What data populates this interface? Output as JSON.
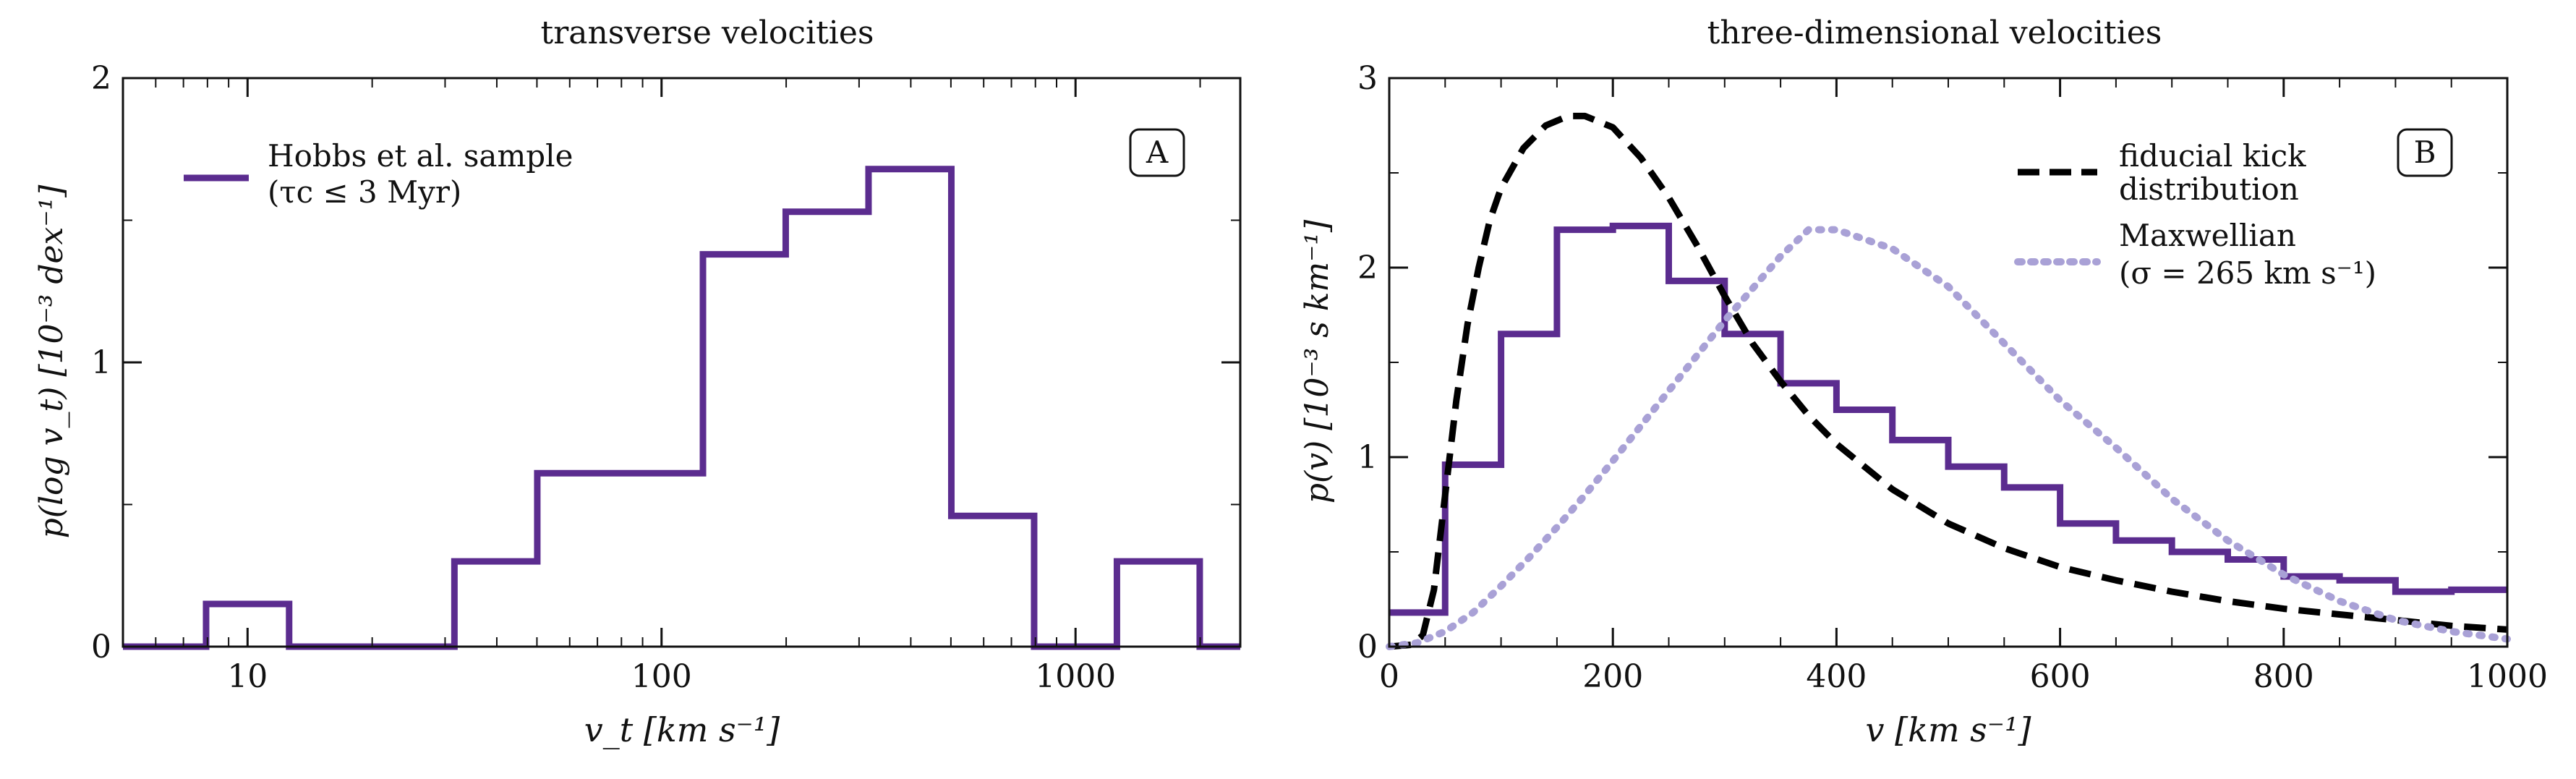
{
  "chart_data": [
    {
      "panel": "A",
      "type": "histogram",
      "title": "transverse velocities",
      "xlabel": "v_t  [km s⁻¹]",
      "ylabel": "p(log v_t)  [10⁻³ dex⁻¹]",
      "xscale": "log",
      "xlim": [
        5,
        2500
      ],
      "ylim": [
        0,
        2
      ],
      "xticks": [
        10,
        100,
        1000
      ],
      "xtick_labels": [
        "10",
        "100",
        "1000"
      ],
      "yticks": [
        0,
        1,
        2
      ],
      "ytick_labels": [
        "0",
        "1",
        "2"
      ],
      "panel_label": "A",
      "legend": {
        "position": "top-left",
        "line1": "Hobbs et al. sample",
        "line2": "(τc ≤ 3 Myr)"
      },
      "series": [
        {
          "name": "Hobbs et al. sample (τc ≤ 3 Myr)",
          "color": "#5b2c8f",
          "edges": [
            5,
            7.94,
            12.6,
            19.95,
            31.6,
            50.1,
            79.4,
            125.9,
            199.5,
            316.2,
            501.2,
            794.3,
            1258.9,
            1995.3,
            2500
          ],
          "values": [
            0,
            0.15,
            0,
            0,
            0.3,
            0.61,
            0.61,
            1.38,
            1.53,
            1.68,
            0.46,
            0,
            0.3,
            0
          ]
        }
      ]
    },
    {
      "panel": "B",
      "type": "line",
      "title": "three-dimensional velocities",
      "xlabel": "v  [km s⁻¹]",
      "ylabel": "p(v)  [10⁻³ s km⁻¹]",
      "xlim": [
        0,
        1000
      ],
      "ylim": [
        0,
        3
      ],
      "xticks": [
        0,
        200,
        400,
        600,
        800,
        1000
      ],
      "xtick_labels": [
        "0",
        "200",
        "400",
        "600",
        "800",
        "1000"
      ],
      "yticks": [
        0,
        1,
        2,
        3
      ],
      "ytick_labels": [
        "0",
        "1",
        "2",
        "3"
      ],
      "panel_label": "B",
      "legend": {
        "position": "top-right",
        "kick_line1": "fiducial kick",
        "kick_line2": "distribution",
        "maxwell_line1": "Maxwellian",
        "maxwell_line2": "(σ = 265 km s⁻¹)"
      },
      "histogram": {
        "name": "Hobbs et al. sample",
        "color": "#5b2c8f",
        "edges": [
          0,
          50,
          100,
          150,
          200,
          250,
          300,
          350,
          400,
          450,
          500,
          550,
          600,
          650,
          700,
          750,
          800,
          850,
          900,
          950,
          1000
        ],
        "values": [
          0.18,
          0.96,
          1.65,
          2.2,
          2.22,
          1.93,
          1.65,
          1.39,
          1.25,
          1.09,
          0.95,
          0.84,
          0.65,
          0.56,
          0.5,
          0.46,
          0.37,
          0.35,
          0.29,
          0.3
        ]
      },
      "curves": [
        {
          "name": "fiducial kick distribution",
          "color": "#000000",
          "style": "dashed",
          "x": [
            0,
            20,
            30,
            40,
            50,
            60,
            70,
            80,
            90,
            100,
            120,
            140,
            160,
            175,
            200,
            225,
            250,
            275,
            300,
            325,
            350,
            375,
            400,
            450,
            500,
            550,
            600,
            650,
            700,
            750,
            800,
            850,
            900,
            950,
            1000
          ],
          "y": [
            0,
            0.01,
            0.06,
            0.3,
            0.8,
            1.3,
            1.7,
            2.0,
            2.25,
            2.42,
            2.63,
            2.75,
            2.8,
            2.8,
            2.74,
            2.58,
            2.37,
            2.12,
            1.85,
            1.6,
            1.4,
            1.22,
            1.07,
            0.83,
            0.65,
            0.52,
            0.42,
            0.35,
            0.29,
            0.24,
            0.2,
            0.17,
            0.14,
            0.11,
            0.09
          ]
        },
        {
          "name": "Maxwellian (σ = 265 km s⁻¹)",
          "color": "#a9a1d6",
          "style": "dotted",
          "x": [
            0,
            25,
            50,
            75,
            100,
            125,
            150,
            175,
            200,
            250,
            300,
            350,
            375,
            400,
            450,
            500,
            550,
            600,
            650,
            700,
            750,
            800,
            850,
            900,
            950,
            1000
          ],
          "y": [
            0,
            0.02,
            0.08,
            0.18,
            0.32,
            0.47,
            0.63,
            0.8,
            0.98,
            1.35,
            1.72,
            2.06,
            2.2,
            2.2,
            2.1,
            1.9,
            1.6,
            1.3,
            1.05,
            0.78,
            0.56,
            0.38,
            0.24,
            0.14,
            0.08,
            0.04
          ]
        }
      ]
    }
  ]
}
